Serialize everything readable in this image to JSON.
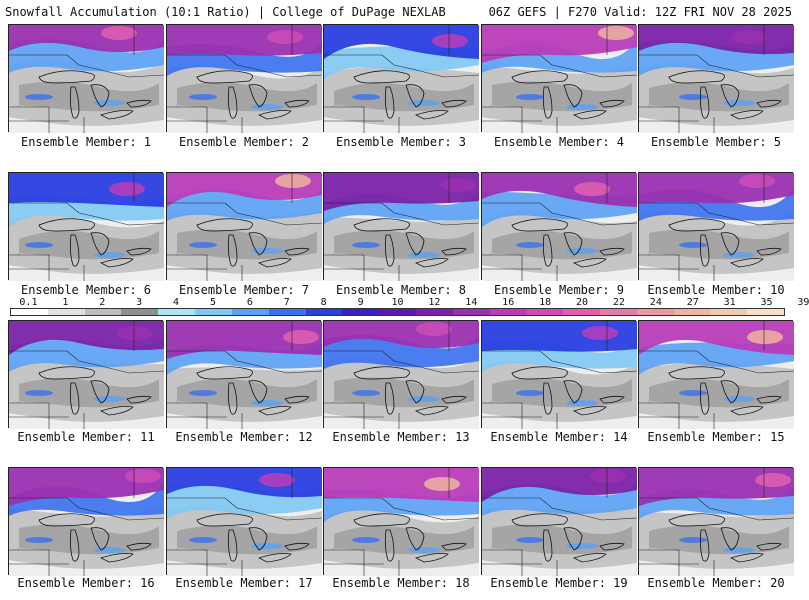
{
  "header": {
    "left": "Snowfall Accumulation (10:1 Ratio) | College of DuPage NEXLAB",
    "right": "06Z GEFS | F270 Valid: 12Z FRI NOV 28 2025"
  },
  "legend": {
    "labels": [
      "0.1",
      "1",
      "2",
      "3",
      "4",
      "5",
      "6",
      "7",
      "8",
      "9",
      "10",
      "12",
      "14",
      "16",
      "18",
      "20",
      "22",
      "24",
      "27",
      "31",
      "35",
      "39"
    ],
    "colors": [
      "#ffffff",
      "#e2e2e2",
      "#bdbdbd",
      "#8f8f8f",
      "#a8e6f0",
      "#7fc8f5",
      "#5aa0f5",
      "#3a70f0",
      "#2a3fe0",
      "#3a1ec8",
      "#5a1ab0",
      "#7a22a8",
      "#9a30b0",
      "#b83cb8",
      "#cc4cb8",
      "#e060b0",
      "#e47aa8",
      "#e89aa0",
      "#eeb4a0",
      "#f2cab0",
      "#f6e0c8"
    ]
  },
  "members": [
    {
      "caption": "Ensemble Member: 1"
    },
    {
      "caption": "Ensemble Member: 2"
    },
    {
      "caption": "Ensemble Member: 3"
    },
    {
      "caption": "Ensemble Member: 4"
    },
    {
      "caption": "Ensemble Member: 5"
    },
    {
      "caption": "Ensemble Member: 6"
    },
    {
      "caption": "Ensemble Member: 7"
    },
    {
      "caption": "Ensemble Member: 8"
    },
    {
      "caption": "Ensemble Member: 9"
    },
    {
      "caption": "Ensemble Member: 10"
    },
    {
      "caption": "Ensemble Member: 11"
    },
    {
      "caption": "Ensemble Member: 12"
    },
    {
      "caption": "Ensemble Member: 13"
    },
    {
      "caption": "Ensemble Member: 14"
    },
    {
      "caption": "Ensemble Member: 15"
    },
    {
      "caption": "Ensemble Member: 16"
    },
    {
      "caption": "Ensemble Member: 17"
    },
    {
      "caption": "Ensemble Member: 18"
    },
    {
      "caption": "Ensemble Member: 19"
    },
    {
      "caption": "Ensemble Member: 20"
    }
  ]
}
